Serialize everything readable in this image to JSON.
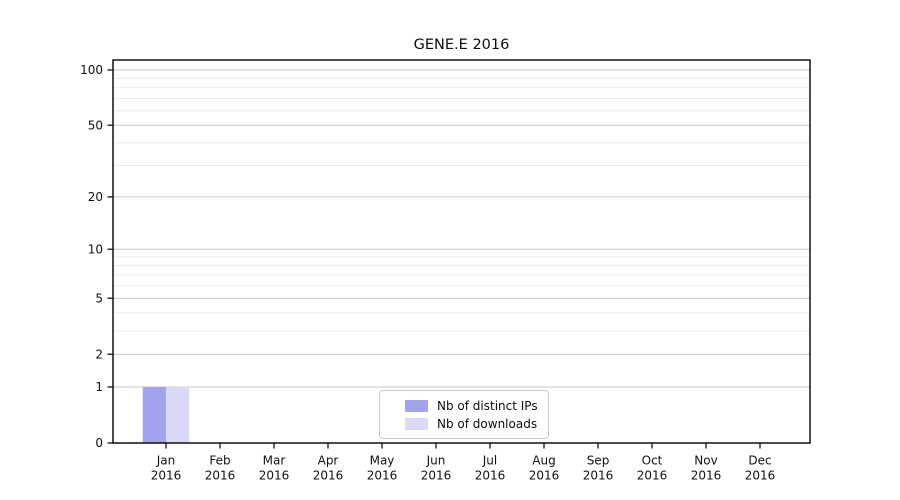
{
  "chart_data": {
    "type": "bar",
    "title": "GENE.E 2016",
    "categories": [
      "Jan",
      "Feb",
      "Mar",
      "Apr",
      "May",
      "Jun",
      "Jul",
      "Aug",
      "Sep",
      "Oct",
      "Nov",
      "Dec"
    ],
    "year": "2016",
    "series": [
      {
        "name": "Nb of distinct IPs",
        "color": "#a2a2ee",
        "values": [
          1,
          0,
          0,
          0,
          0,
          0,
          0,
          0,
          0,
          0,
          0,
          0
        ]
      },
      {
        "name": "Nb of downloads",
        "color": "#dadaf8",
        "values": [
          1,
          0,
          0,
          0,
          0,
          0,
          0,
          0,
          0,
          0,
          0,
          0
        ]
      }
    ],
    "y_axis": {
      "scale": "log10(1+y)",
      "ticks": [
        0,
        1,
        2,
        5,
        10,
        20,
        50,
        100
      ],
      "minor_gridlines": [
        3,
        4,
        6,
        7,
        8,
        9,
        30,
        40,
        60,
        70,
        80,
        90
      ],
      "range": [
        0,
        113
      ]
    },
    "xlabel": "",
    "ylabel": "",
    "grid": "horizontal major and minor, on",
    "legend_position": "inside bottom-center",
    "colors": {
      "major_grid": "#c9c9c9",
      "minor_grid": "#ebebeb",
      "axis": "#000000",
      "legend_border": "#cccccc"
    }
  }
}
